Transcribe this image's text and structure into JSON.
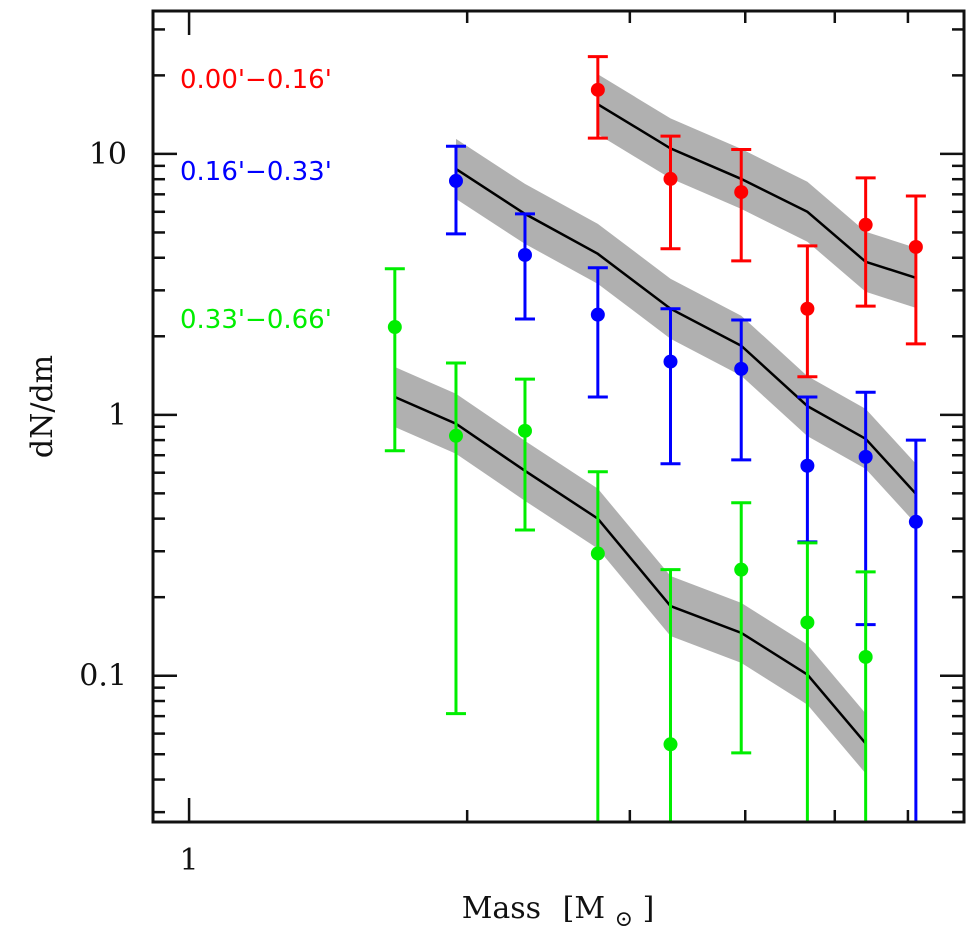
{
  "chart_data": {
    "type": "scatter",
    "title": "",
    "xlabel": "Mass [M⊙]",
    "xlabel_main": "Mass",
    "xlabel_unit_open": "[M",
    "xlabel_unit_sub": "⊙",
    "xlabel_unit_close": "]",
    "ylabel": "dN/dm",
    "xscale": "log",
    "yscale": "log",
    "xlim": [
      0.914,
      6.9
    ],
    "ylim": [
      0.0275,
      35.3
    ],
    "grid": false,
    "x_major_ticks": [
      {
        "value": 1,
        "label": "1"
      }
    ],
    "x_minor_ticks": [
      2,
      3,
      4,
      5,
      6
    ],
    "y_major_ticks": [
      {
        "value": 0.1,
        "label": "0.1"
      },
      {
        "value": 1,
        "label": "1"
      },
      {
        "value": 10,
        "label": "10"
      }
    ],
    "y_minor_ticks": [
      0.03,
      0.04,
      0.05,
      0.06,
      0.07,
      0.08,
      0.09,
      0.2,
      0.3,
      0.4,
      0.5,
      0.6,
      0.7,
      0.8,
      0.9,
      2,
      3,
      4,
      5,
      6,
      7,
      8,
      9,
      20,
      30
    ],
    "legend_placement": "top-left",
    "model_band_halfwidth_dex": 0.115,
    "series": [
      {
        "name": "0.00'−0.16'",
        "color": "#ff0000",
        "points": [
          {
            "x": 2.77,
            "y": 17.6,
            "y_hi": 23.6,
            "y_lo": 11.5
          },
          {
            "x": 3.32,
            "y": 8.02,
            "y_hi": 11.7,
            "y_lo": 4.33
          },
          {
            "x": 3.96,
            "y": 7.14,
            "y_hi": 10.4,
            "y_lo": 3.89
          },
          {
            "x": 4.67,
            "y": 2.55,
            "y_hi": 4.44,
            "y_lo": 1.4
          },
          {
            "x": 5.4,
            "y": 5.35,
            "y_hi": 8.09,
            "y_lo": 2.61
          },
          {
            "x": 6.12,
            "y": 4.4,
            "y_hi": 6.9,
            "y_lo": 1.87
          }
        ],
        "model": {
          "x": [
            2.77,
            3.32,
            3.96,
            4.67,
            5.4,
            6.12
          ],
          "y": [
            15.5,
            10.5,
            8.02,
            6.0,
            3.86,
            3.35
          ]
        }
      },
      {
        "name": "0.16'−0.33'",
        "color": "#0000ff",
        "points": [
          {
            "x": 1.945,
            "y": 7.88,
            "y_hi": 10.7,
            "y_lo": 4.94
          },
          {
            "x": 2.31,
            "y": 4.1,
            "y_hi": 5.89,
            "y_lo": 2.33
          },
          {
            "x": 2.77,
            "y": 2.42,
            "y_hi": 3.66,
            "y_lo": 1.17
          },
          {
            "x": 3.32,
            "y": 1.6,
            "y_hi": 2.55,
            "y_lo": 0.649
          },
          {
            "x": 3.96,
            "y": 1.5,
            "y_hi": 2.31,
            "y_lo": 0.672
          },
          {
            "x": 4.67,
            "y": 0.638,
            "y_hi": 1.17,
            "y_lo": 0.326
          },
          {
            "x": 5.4,
            "y": 0.69,
            "y_hi": 1.22,
            "y_lo": 0.157
          },
          {
            "x": 6.12,
            "y": 0.389,
            "y_hi": 0.8,
            "y_lo": 0.0275
          }
        ],
        "model": {
          "x": [
            1.945,
            2.31,
            2.77,
            3.32,
            3.96,
            4.67,
            5.4,
            6.12
          ],
          "y": [
            8.76,
            5.89,
            4.14,
            2.55,
            1.84,
            1.08,
            0.809,
            0.498
          ]
        }
      },
      {
        "name": "0.33'−0.66'",
        "color": "#00ee00",
        "points": [
          {
            "x": 1.67,
            "y": 2.17,
            "y_hi": 3.63,
            "y_lo": 0.728
          },
          {
            "x": 1.945,
            "y": 0.831,
            "y_hi": 1.58,
            "y_lo": 0.0716
          },
          {
            "x": 2.31,
            "y": 0.868,
            "y_hi": 1.37,
            "y_lo": 0.362
          },
          {
            "x": 2.77,
            "y": 0.294,
            "y_hi": 0.605,
            "y_lo": 0.0275
          },
          {
            "x": 3.32,
            "y": 0.0546,
            "y_hi": 0.255,
            "y_lo": 0.0275
          },
          {
            "x": 3.96,
            "y": 0.255,
            "y_hi": 0.46,
            "y_lo": 0.0506
          },
          {
            "x": 4.67,
            "y": 0.16,
            "y_hi": 0.323,
            "y_lo": 0.0275
          },
          {
            "x": 5.4,
            "y": 0.118,
            "y_hi": 0.25,
            "y_lo": 0.0275
          }
        ],
        "model": {
          "x": [
            1.67,
            1.945,
            2.31,
            2.77,
            3.32,
            3.96,
            4.67,
            5.4
          ],
          "y": [
            1.17,
            0.924,
            0.61,
            0.4,
            0.185,
            0.146,
            0.101,
            0.055
          ]
        }
      }
    ]
  },
  "colors": {
    "axis": "#111111",
    "model_line": "#000000",
    "model_band": "#b0b0b0"
  }
}
